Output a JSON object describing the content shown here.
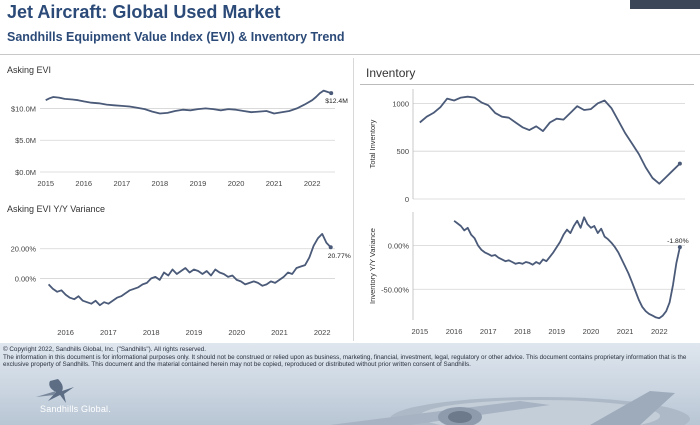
{
  "header": {
    "title": "Jet Aircraft:  Global Used Market",
    "subtitle": "Sandhills Equipment Value Index (EVI) & Inventory Trend"
  },
  "footer": {
    "copyright": "© Copyright 2022, Sandhills Global, Inc. (\"Sandhills\"). All rights reserved.",
    "disclaimer": "The information in this document is for informational purposes only.  It should not be construed or relied upon as business, marketing, financial, investment, legal, regulatory or other advice. This document contains proprietary information that is the exclusive property of Sandhills. This document and the material contained herein may not be copied, reproduced or distributed without prior written consent of Sandhills.",
    "logo_text": "Sandhills Global."
  },
  "colors": {
    "line": "#4a5a78",
    "title": "#2b4a78",
    "grid": "#c8c8c8"
  },
  "chart_data": [
    {
      "id": "asking-evi",
      "type": "line",
      "title": "Asking EVI",
      "ylim": [
        0,
        14
      ],
      "yticks": [
        {
          "v": 0,
          "label": "$0.0M"
        },
        {
          "v": 5,
          "label": "$5.0M"
        },
        {
          "v": 10,
          "label": "$10.0M"
        }
      ],
      "xlim": [
        2014.85,
        2022.6
      ],
      "xticks": [
        2015,
        2016,
        2017,
        2018,
        2019,
        2020,
        2021,
        2022
      ],
      "end_label": "$12.4M",
      "x": [
        2015.0,
        2015.1,
        2015.2,
        2015.35,
        2015.5,
        2015.7,
        2015.85,
        2016.0,
        2016.2,
        2016.4,
        2016.6,
        2016.8,
        2017.0,
        2017.2,
        2017.4,
        2017.6,
        2017.8,
        2018.0,
        2018.2,
        2018.4,
        2018.6,
        2018.8,
        2019.0,
        2019.2,
        2019.4,
        2019.6,
        2019.8,
        2020.0,
        2020.2,
        2020.4,
        2020.6,
        2020.8,
        2021.0,
        2021.2,
        2021.4,
        2021.6,
        2021.8,
        2022.0,
        2022.1,
        2022.2,
        2022.3,
        2022.4,
        2022.5
      ],
      "y": [
        11.3,
        11.6,
        11.8,
        11.7,
        11.5,
        11.4,
        11.3,
        11.1,
        10.9,
        10.8,
        10.6,
        10.5,
        10.4,
        10.3,
        10.1,
        9.9,
        9.5,
        9.2,
        9.3,
        9.6,
        9.8,
        9.7,
        9.9,
        10.0,
        9.9,
        9.7,
        9.9,
        9.8,
        9.6,
        9.4,
        9.5,
        9.6,
        9.2,
        9.4,
        9.6,
        10.0,
        10.6,
        11.3,
        11.8,
        12.4,
        12.8,
        12.6,
        12.4
      ]
    },
    {
      "id": "asking-evi-yoy",
      "type": "line",
      "title": "Asking EVI Y/Y Variance",
      "ylim": [
        -28,
        38
      ],
      "yticks": [
        {
          "v": 0,
          "label": "0.00%"
        },
        {
          "v": 20,
          "label": "20.00%"
        }
      ],
      "xlim": [
        2015.4,
        2022.3
      ],
      "xticks": [
        2016,
        2017,
        2018,
        2019,
        2020,
        2021,
        2022
      ],
      "end_label": "20.77%",
      "x": [
        2015.6,
        2015.7,
        2015.8,
        2015.9,
        2016.0,
        2016.1,
        2016.2,
        2016.3,
        2016.4,
        2016.5,
        2016.6,
        2016.7,
        2016.8,
        2016.9,
        2017.0,
        2017.1,
        2017.2,
        2017.3,
        2017.4,
        2017.5,
        2017.6,
        2017.7,
        2017.8,
        2017.9,
        2018.0,
        2018.1,
        2018.2,
        2018.3,
        2018.4,
        2018.5,
        2018.6,
        2018.7,
        2018.8,
        2018.9,
        2019.0,
        2019.1,
        2019.2,
        2019.3,
        2019.4,
        2019.5,
        2019.6,
        2019.7,
        2019.8,
        2019.9,
        2020.0,
        2020.1,
        2020.2,
        2020.3,
        2020.4,
        2020.5,
        2020.6,
        2020.7,
        2020.8,
        2020.9,
        2021.0,
        2021.1,
        2021.2,
        2021.3,
        2021.4,
        2021.5,
        2021.6,
        2021.7,
        2021.8,
        2021.9,
        2022.0,
        2022.1,
        2022.2
      ],
      "y": [
        -4,
        -7,
        -9,
        -8,
        -11,
        -13,
        -14,
        -12,
        -15,
        -16,
        -17,
        -15,
        -18,
        -16,
        -17,
        -15,
        -13,
        -12,
        -10,
        -8,
        -7,
        -6,
        -4,
        -3,
        0,
        1,
        -1,
        4,
        2,
        6,
        3,
        5,
        7,
        4,
        6,
        5,
        3,
        5,
        2,
        6,
        4,
        3,
        1,
        2,
        -1,
        -2,
        -4,
        -3,
        -2,
        -3,
        -5,
        -4,
        -2,
        -3,
        -1,
        1,
        4,
        3,
        7,
        8,
        9,
        14,
        22,
        27,
        30,
        24,
        21
      ]
    },
    {
      "id": "inventory",
      "type": "line",
      "title": "Inventory",
      "ylabel": "Total Inventory",
      "ylim": [
        0,
        1150
      ],
      "yticks": [
        {
          "v": 0,
          "label": "0"
        },
        {
          "v": 500,
          "label": "500"
        },
        {
          "v": 1000,
          "label": "1000"
        }
      ],
      "xlim": [
        2014.8,
        2022.75
      ],
      "xticks": [
        2015,
        2016,
        2017,
        2018,
        2019,
        2020,
        2021,
        2022
      ],
      "x": [
        2015.0,
        2015.2,
        2015.4,
        2015.6,
        2015.8,
        2016.0,
        2016.2,
        2016.4,
        2016.6,
        2016.8,
        2017.0,
        2017.2,
        2017.4,
        2017.6,
        2017.8,
        2018.0,
        2018.2,
        2018.4,
        2018.6,
        2018.8,
        2019.0,
        2019.2,
        2019.4,
        2019.6,
        2019.8,
        2020.0,
        2020.2,
        2020.4,
        2020.6,
        2020.8,
        2021.0,
        2021.2,
        2021.4,
        2021.6,
        2021.8,
        2022.0,
        2022.2,
        2022.4,
        2022.6
      ],
      "y": [
        800,
        860,
        900,
        960,
        1050,
        1030,
        1060,
        1070,
        1060,
        1010,
        980,
        900,
        860,
        850,
        800,
        750,
        720,
        760,
        710,
        800,
        840,
        830,
        900,
        970,
        930,
        940,
        1000,
        1030,
        950,
        820,
        690,
        580,
        470,
        330,
        220,
        160,
        230,
        300,
        370
      ]
    },
    {
      "id": "inventory-yoy",
      "type": "line",
      "ylabel": "Inventory  Y/Y Variance",
      "ylim": [
        -85,
        38
      ],
      "yticks": [
        {
          "v": 0,
          "label": "0.00%"
        },
        {
          "v": -50,
          "label": "-50.00%"
        }
      ],
      "xlim": [
        2014.8,
        2022.75
      ],
      "xticks": [
        2015,
        2016,
        2017,
        2018,
        2019,
        2020,
        2021,
        2022
      ],
      "end_label": "-1.80%",
      "x": [
        2016.0,
        2016.1,
        2016.2,
        2016.3,
        2016.4,
        2016.5,
        2016.6,
        2016.7,
        2016.8,
        2016.9,
        2017.0,
        2017.1,
        2017.2,
        2017.3,
        2017.4,
        2017.5,
        2017.6,
        2017.7,
        2017.8,
        2017.9,
        2018.0,
        2018.1,
        2018.2,
        2018.3,
        2018.4,
        2018.5,
        2018.6,
        2018.7,
        2018.8,
        2018.9,
        2019.0,
        2019.1,
        2019.2,
        2019.3,
        2019.4,
        2019.5,
        2019.6,
        2019.7,
        2019.8,
        2019.9,
        2020.0,
        2020.1,
        2020.2,
        2020.3,
        2020.4,
        2020.5,
        2020.6,
        2020.7,
        2020.8,
        2020.9,
        2021.0,
        2021.1,
        2021.2,
        2021.3,
        2021.4,
        2021.5,
        2021.6,
        2021.7,
        2021.8,
        2021.9,
        2022.0,
        2022.1,
        2022.2,
        2022.3,
        2022.4,
        2022.5,
        2022.6
      ],
      "y": [
        28,
        25,
        22,
        17,
        20,
        12,
        8,
        0,
        -5,
        -8,
        -10,
        -12,
        -11,
        -14,
        -16,
        -18,
        -17,
        -19,
        -21,
        -20,
        -21,
        -19,
        -20,
        -22,
        -19,
        -21,
        -16,
        -18,
        -13,
        -8,
        -2,
        4,
        12,
        18,
        14,
        22,
        28,
        20,
        32,
        24,
        20,
        22,
        14,
        19,
        10,
        7,
        3,
        -2,
        -8,
        -16,
        -24,
        -32,
        -42,
        -52,
        -62,
        -70,
        -75,
        -78,
        -80,
        -82,
        -83,
        -80,
        -75,
        -65,
        -45,
        -20,
        -2
      ]
    }
  ]
}
